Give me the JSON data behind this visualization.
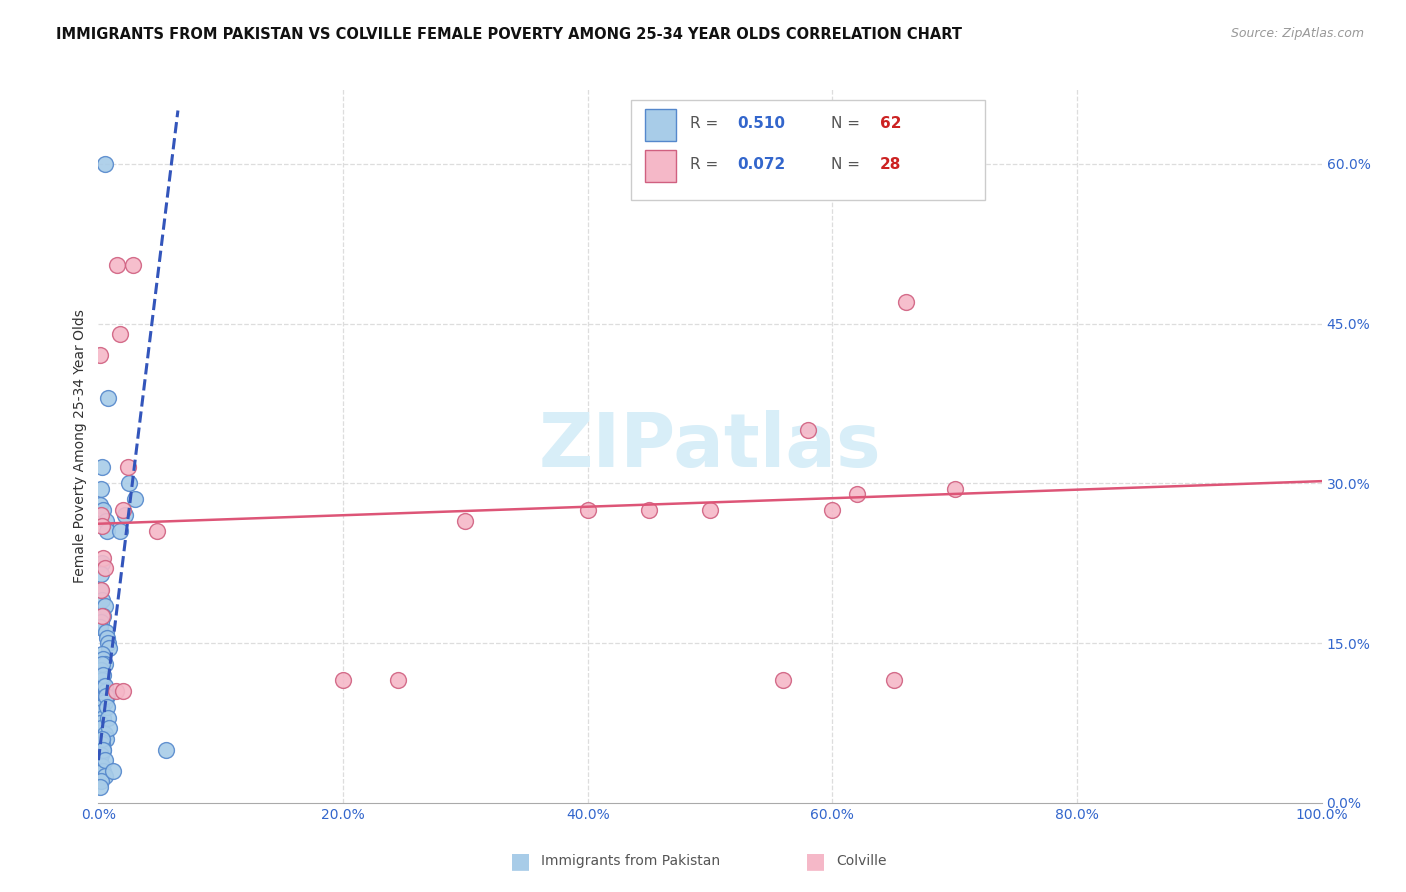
{
  "title": "IMMIGRANTS FROM PAKISTAN VS COLVILLE FEMALE POVERTY AMONG 25-34 YEAR OLDS CORRELATION CHART",
  "source": "Source: ZipAtlas.com",
  "ylabel": "Female Poverty Among 25-34 Year Olds",
  "xlim": [
    0.0,
    1.0
  ],
  "ylim": [
    0.0,
    0.67
  ],
  "color_blue": "#a8cce8",
  "color_blue_edge": "#5588cc",
  "color_pink": "#f5b8c8",
  "color_pink_edge": "#d06080",
  "color_blue_line": "#3355bb",
  "color_pink_line": "#dd5577",
  "watermark_color": "#d8eef8",
  "grid_color": "#dddddd",
  "blue_x": [
    0.005,
    0.008,
    0.003,
    0.002,
    0.001,
    0.004,
    0.006,
    0.007,
    0.003,
    0.002,
    0.001,
    0.003,
    0.005,
    0.004,
    0.002,
    0.001,
    0.006,
    0.007,
    0.008,
    0.009,
    0.003,
    0.004,
    0.005,
    0.002,
    0.001,
    0.003,
    0.004,
    0.006,
    0.007,
    0.005,
    0.002,
    0.003,
    0.004,
    0.001,
    0.002,
    0.005,
    0.006,
    0.003,
    0.004,
    0.002,
    0.001,
    0.003,
    0.004,
    0.005,
    0.002,
    0.001,
    0.003,
    0.004,
    0.005,
    0.006,
    0.007,
    0.008,
    0.009,
    0.003,
    0.004,
    0.005,
    0.025,
    0.03,
    0.022,
    0.018,
    0.055,
    0.012
  ],
  "blue_y": [
    0.6,
    0.38,
    0.315,
    0.295,
    0.28,
    0.275,
    0.265,
    0.255,
    0.225,
    0.215,
    0.2,
    0.19,
    0.185,
    0.175,
    0.17,
    0.165,
    0.16,
    0.155,
    0.15,
    0.145,
    0.14,
    0.135,
    0.13,
    0.125,
    0.12,
    0.115,
    0.11,
    0.105,
    0.1,
    0.095,
    0.09,
    0.085,
    0.08,
    0.075,
    0.07,
    0.065,
    0.06,
    0.055,
    0.05,
    0.045,
    0.04,
    0.035,
    0.03,
    0.025,
    0.02,
    0.015,
    0.13,
    0.12,
    0.11,
    0.1,
    0.09,
    0.08,
    0.07,
    0.06,
    0.05,
    0.04,
    0.3,
    0.285,
    0.27,
    0.255,
    0.05,
    0.03
  ],
  "pink_x": [
    0.001,
    0.015,
    0.028,
    0.018,
    0.024,
    0.02,
    0.002,
    0.003,
    0.004,
    0.005,
    0.002,
    0.003,
    0.014,
    0.02,
    0.5,
    0.6,
    0.62,
    0.66,
    0.58,
    0.4,
    0.45,
    0.56,
    0.2,
    0.245,
    0.3,
    0.65,
    0.7,
    0.048
  ],
  "pink_y": [
    0.42,
    0.505,
    0.505,
    0.44,
    0.315,
    0.275,
    0.27,
    0.26,
    0.23,
    0.22,
    0.2,
    0.175,
    0.105,
    0.105,
    0.275,
    0.275,
    0.29,
    0.47,
    0.35,
    0.275,
    0.275,
    0.115,
    0.115,
    0.115,
    0.265,
    0.115,
    0.295,
    0.255
  ]
}
